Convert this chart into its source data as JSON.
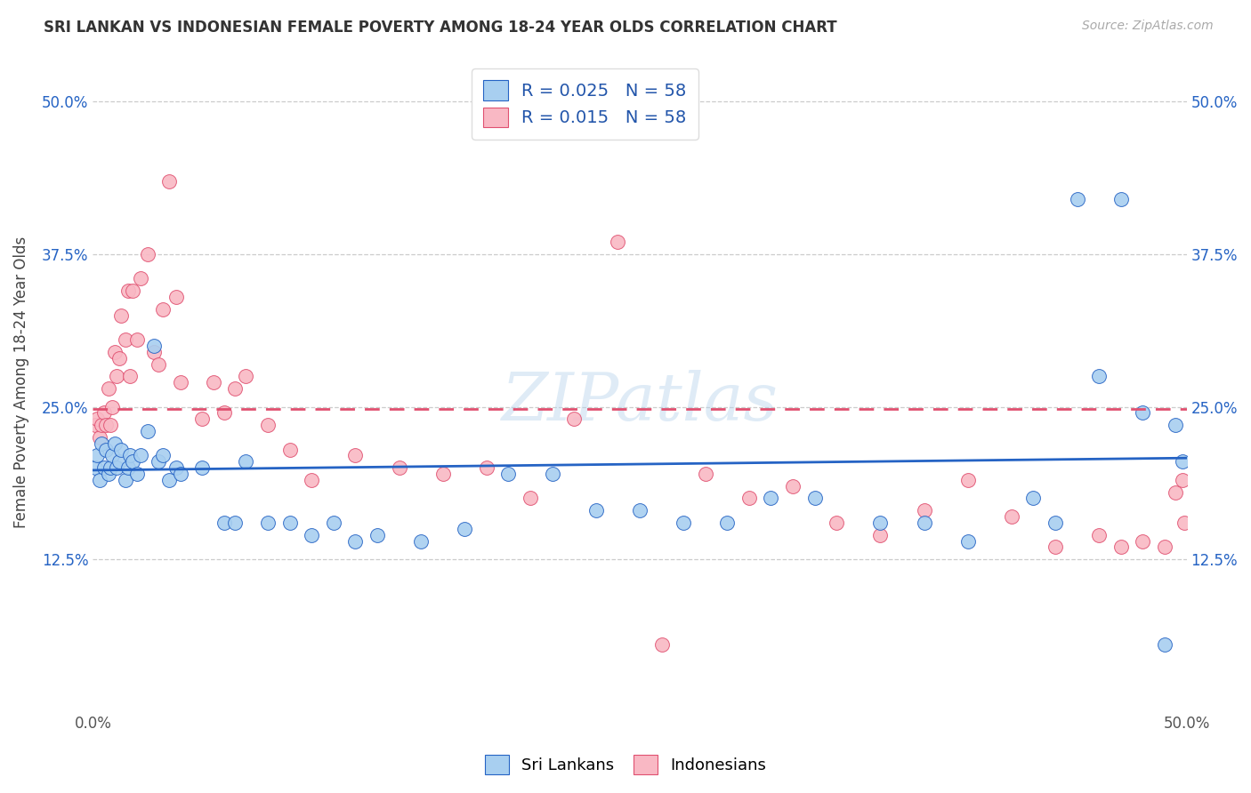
{
  "title": "SRI LANKAN VS INDONESIAN FEMALE POVERTY AMONG 18-24 YEAR OLDS CORRELATION CHART",
  "source": "Source: ZipAtlas.com",
  "ylabel": "Female Poverty Among 18-24 Year Olds",
  "xlim": [
    0.0,
    0.5
  ],
  "ylim": [
    0.0,
    0.54
  ],
  "ytick_vals": [
    0.125,
    0.25,
    0.375,
    0.5
  ],
  "ytick_labels": [
    "12.5%",
    "25.0%",
    "37.5%",
    "50.0%"
  ],
  "xtick_vals": [
    0.0,
    0.1,
    0.2,
    0.3,
    0.4,
    0.5
  ],
  "xtick_labels": [
    "0.0%",
    "",
    "",
    "",
    "",
    "50.0%"
  ],
  "sri_lankans_color": "#A8CFF0",
  "indonesians_color": "#F9B8C4",
  "trend_sri_color": "#2563C4",
  "trend_indo_color": "#E05070",
  "background_color": "#FFFFFF",
  "watermark": "ZIPatlas",
  "sri_lankans_label": "Sri Lankans",
  "indonesians_label": "Indonesians",
  "sri_lankans_x": [
    0.001,
    0.002,
    0.003,
    0.004,
    0.005,
    0.006,
    0.007,
    0.008,
    0.009,
    0.01,
    0.011,
    0.012,
    0.013,
    0.015,
    0.016,
    0.017,
    0.018,
    0.02,
    0.022,
    0.025,
    0.028,
    0.03,
    0.032,
    0.035,
    0.038,
    0.04,
    0.05,
    0.06,
    0.065,
    0.07,
    0.08,
    0.09,
    0.1,
    0.11,
    0.12,
    0.13,
    0.15,
    0.17,
    0.19,
    0.21,
    0.23,
    0.25,
    0.27,
    0.29,
    0.31,
    0.33,
    0.36,
    0.38,
    0.4,
    0.43,
    0.44,
    0.45,
    0.46,
    0.47,
    0.48,
    0.49,
    0.495,
    0.498
  ],
  "sri_lankans_y": [
    0.2,
    0.21,
    0.19,
    0.22,
    0.2,
    0.215,
    0.195,
    0.2,
    0.21,
    0.22,
    0.2,
    0.205,
    0.215,
    0.19,
    0.2,
    0.21,
    0.205,
    0.195,
    0.21,
    0.23,
    0.3,
    0.205,
    0.21,
    0.19,
    0.2,
    0.195,
    0.2,
    0.155,
    0.155,
    0.205,
    0.155,
    0.155,
    0.145,
    0.155,
    0.14,
    0.145,
    0.14,
    0.15,
    0.195,
    0.195,
    0.165,
    0.165,
    0.155,
    0.155,
    0.175,
    0.175,
    0.155,
    0.155,
    0.14,
    0.175,
    0.155,
    0.42,
    0.275,
    0.42,
    0.245,
    0.055,
    0.235,
    0.205
  ],
  "indonesians_x": [
    0.001,
    0.002,
    0.003,
    0.004,
    0.005,
    0.006,
    0.007,
    0.008,
    0.009,
    0.01,
    0.011,
    0.012,
    0.013,
    0.015,
    0.016,
    0.017,
    0.018,
    0.02,
    0.022,
    0.025,
    0.028,
    0.03,
    0.032,
    0.035,
    0.038,
    0.04,
    0.05,
    0.055,
    0.06,
    0.065,
    0.07,
    0.08,
    0.09,
    0.1,
    0.12,
    0.14,
    0.16,
    0.18,
    0.2,
    0.22,
    0.24,
    0.26,
    0.28,
    0.3,
    0.32,
    0.34,
    0.36,
    0.38,
    0.4,
    0.42,
    0.44,
    0.46,
    0.47,
    0.48,
    0.49,
    0.495,
    0.498,
    0.499
  ],
  "indonesians_y": [
    0.235,
    0.24,
    0.225,
    0.235,
    0.245,
    0.235,
    0.265,
    0.235,
    0.25,
    0.295,
    0.275,
    0.29,
    0.325,
    0.305,
    0.345,
    0.275,
    0.345,
    0.305,
    0.355,
    0.375,
    0.295,
    0.285,
    0.33,
    0.435,
    0.34,
    0.27,
    0.24,
    0.27,
    0.245,
    0.265,
    0.275,
    0.235,
    0.215,
    0.19,
    0.21,
    0.2,
    0.195,
    0.2,
    0.175,
    0.24,
    0.385,
    0.055,
    0.195,
    0.175,
    0.185,
    0.155,
    0.145,
    0.165,
    0.19,
    0.16,
    0.135,
    0.145,
    0.135,
    0.14,
    0.135,
    0.18,
    0.19,
    0.155
  ],
  "trend_sri_start_y": 0.198,
  "trend_sri_end_y": 0.208,
  "trend_indo_start_y": 0.248,
  "trend_indo_end_y": 0.248
}
